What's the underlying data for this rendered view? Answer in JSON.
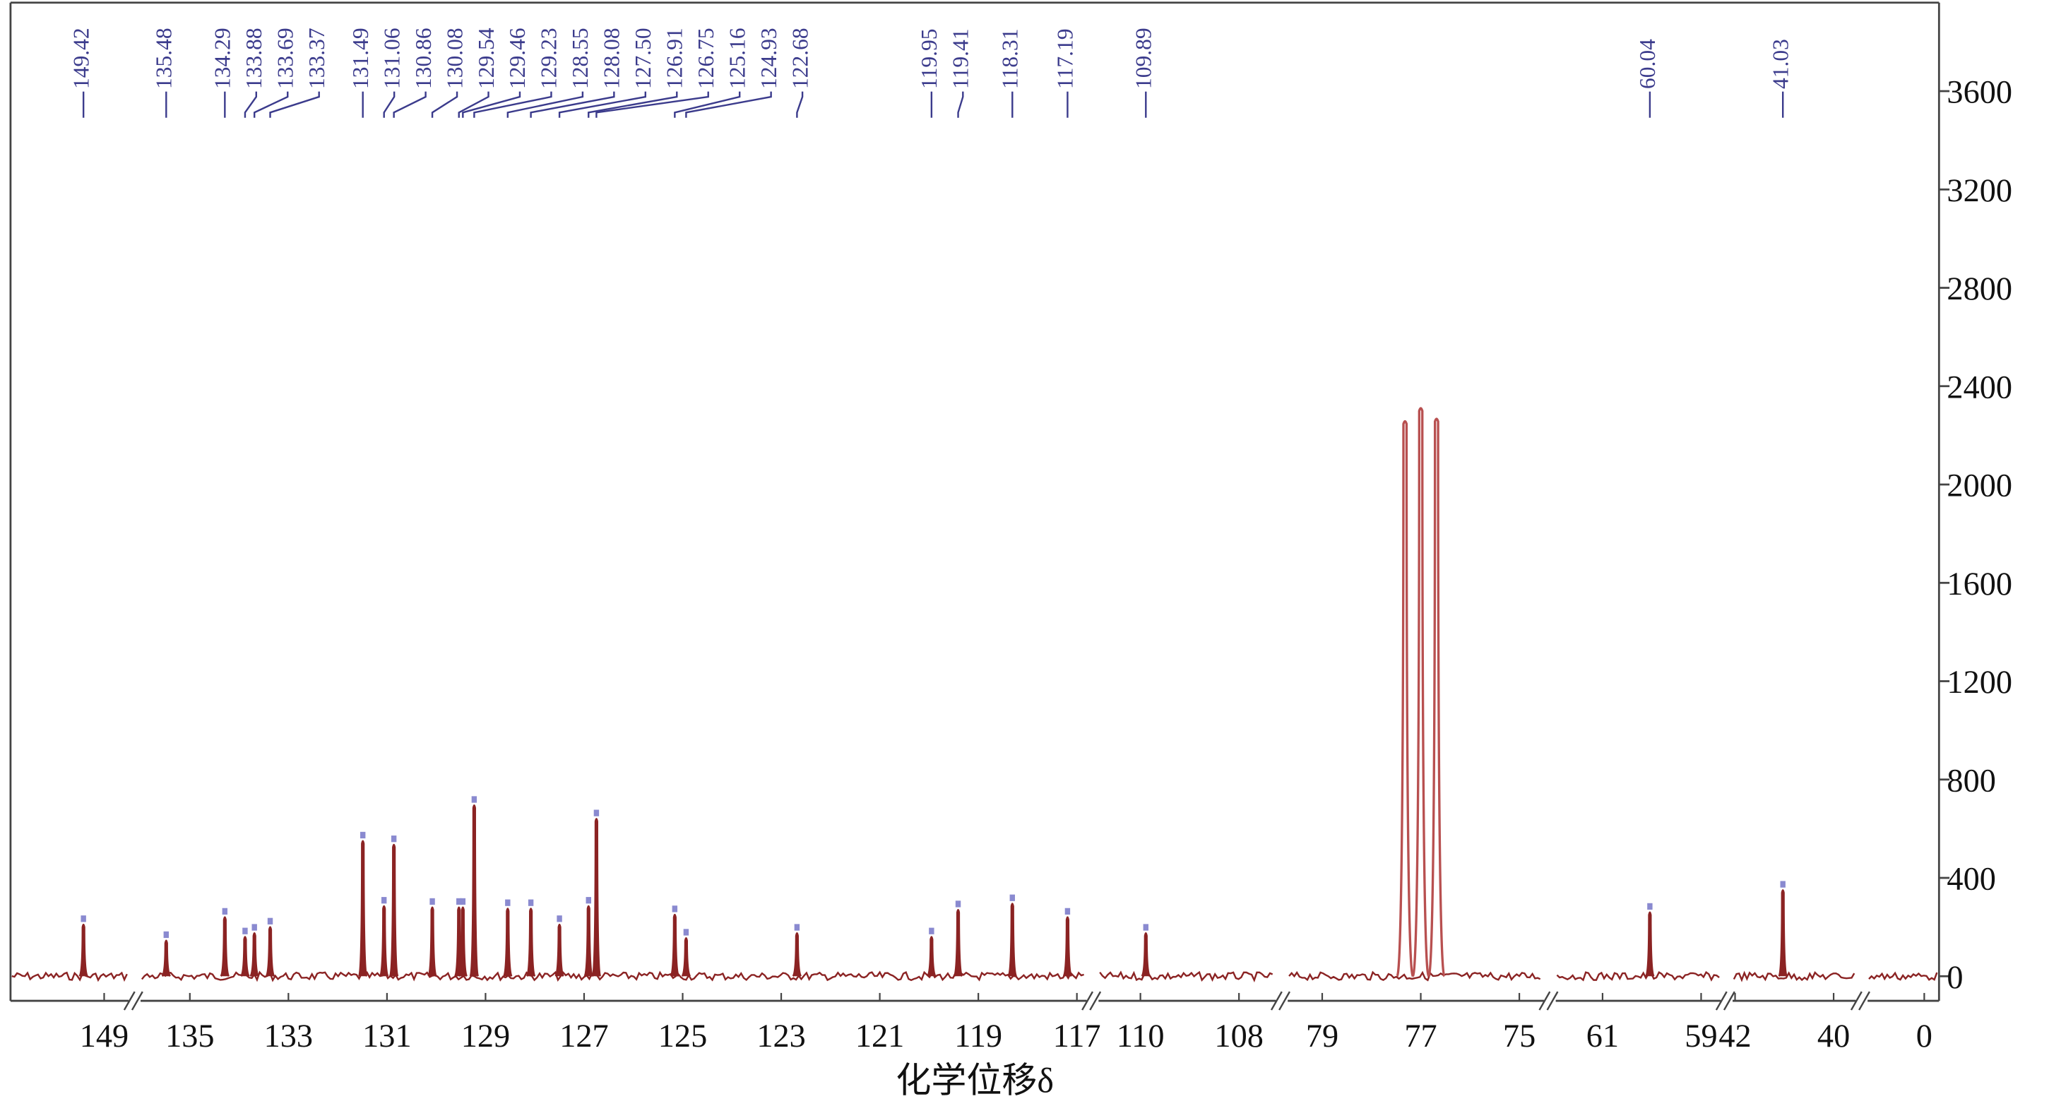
{
  "chart_data": {
    "type": "line",
    "x_label": "化学位移δ",
    "ylim": [
      -100,
      3960
    ],
    "yticks": [
      0,
      400,
      800,
      1200,
      1600,
      2000,
      2400,
      2800,
      3200,
      3600
    ],
    "color": "#8b2323",
    "label_color": "#3b3b8c",
    "segments": [
      {
        "xlim": [
          150.9,
          148.5
        ],
        "xticks": [
          149
        ]
      },
      {
        "xlim": [
          136,
          116.8
        ],
        "xticks": [
          135,
          133,
          131,
          129,
          127,
          125,
          123,
          121,
          119,
          117
        ]
      },
      {
        "xlim": [
          110.85,
          107.25
        ],
        "xticks": [
          110,
          108
        ]
      },
      {
        "xlim": [
          79.7,
          74.5
        ],
        "xticks": [
          79,
          77,
          75
        ]
      },
      {
        "xlim": [
          61.95,
          58.6
        ],
        "xticks": [
          61,
          59
        ]
      },
      {
        "xlim": [
          42.05,
          39.55
        ],
        "xticks": [
          42,
          40
        ]
      },
      {
        "xlim": [
          1.15,
          -0.3
        ],
        "xticks": [
          0
        ]
      }
    ],
    "series": [
      {
        "x": [
          149.42,
          135.48,
          134.29,
          133.88,
          133.69,
          133.37,
          131.49,
          131.06,
          130.86,
          130.08,
          129.54,
          129.46,
          129.23,
          128.55,
          128.08,
          127.5,
          126.91,
          126.75,
          125.16,
          124.93,
          122.68,
          119.95,
          119.41,
          118.31,
          117.19,
          109.89,
          77.32,
          77.0,
          76.68,
          60.04,
          41.03
        ],
        "x_labels": [
          "149.42",
          "135.48",
          "134.29",
          "133.88",
          "133.69",
          "133.37",
          "131.49",
          "131.06",
          "130.86",
          "130.08",
          "129.54",
          "129.46",
          "129.23",
          "128.55",
          "128.08",
          "127.50",
          "126.91",
          "126.75",
          "125.16",
          "124.93",
          "122.68",
          "119.95",
          "119.41",
          "118.31",
          "117.19",
          "109.89",
          null,
          null,
          null,
          "60.04",
          "41.03"
        ],
        "values": [
          210,
          145,
          240,
          160,
          175,
          200,
          550,
          285,
          535,
          280,
          280,
          280,
          695,
          275,
          275,
          210,
          285,
          640,
          250,
          155,
          175,
          160,
          270,
          295,
          240,
          175,
          2257,
          2310,
          2267,
          260,
          350
        ]
      }
    ]
  }
}
